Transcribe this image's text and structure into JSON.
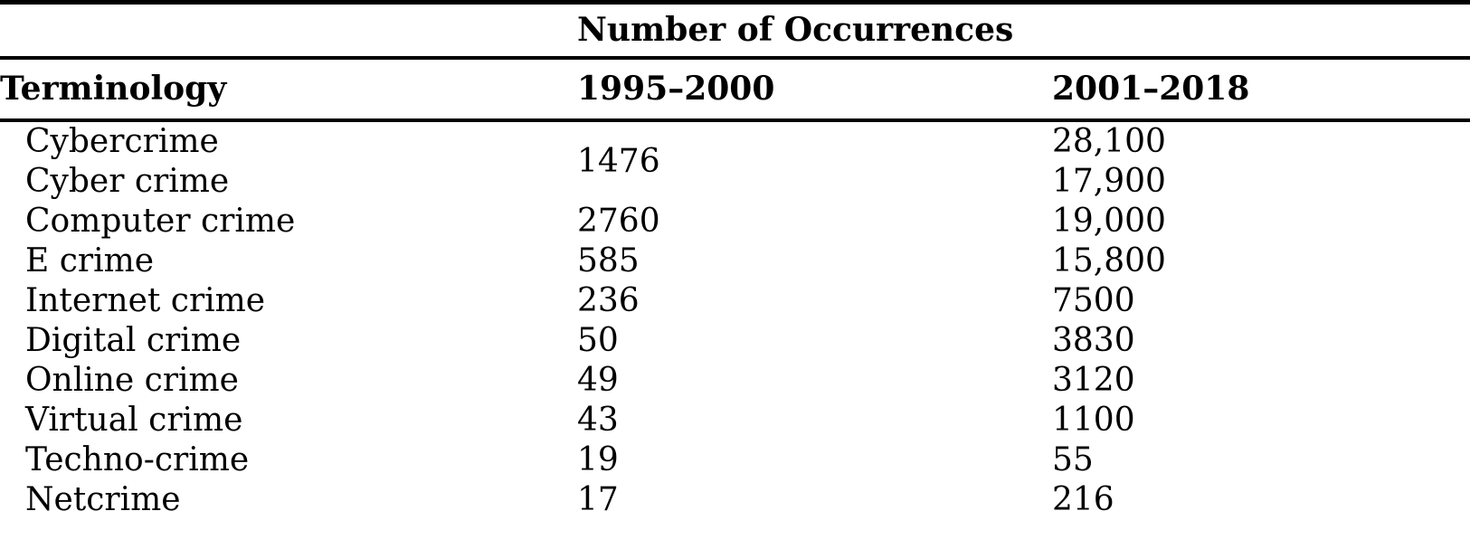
{
  "meta": {
    "background_color": "#ffffff",
    "text_color": "#000000",
    "rule_color": "#000000"
  },
  "table": {
    "spanning_header": "Number of Occurrences",
    "columns": {
      "terminology": "Terminology",
      "period1": "1995–2000",
      "period2": "2001–2018"
    },
    "rows": [
      {
        "term": "Cybercrime",
        "period1": {
          "text": "1476",
          "rowspan": 2
        },
        "period2": "28,100"
      },
      {
        "term": "Cyber crime",
        "period1": null,
        "period2": "17,900"
      },
      {
        "term": "Computer crime",
        "period1": "2760",
        "period2": "19,000"
      },
      {
        "term": "E crime",
        "period1": "585",
        "period2": "15,800"
      },
      {
        "term": "Internet crime",
        "period1": "236",
        "period2": "7500"
      },
      {
        "term": "Digital crime",
        "period1": "50",
        "period2": "3830"
      },
      {
        "term": "Online crime",
        "period1": "49",
        "period2": "3120"
      },
      {
        "term": "Virtual crime",
        "period1": "43",
        "period2": "1100"
      },
      {
        "term": "Techno-crime",
        "period1": "19",
        "period2": "55"
      },
      {
        "term": "Netcrime",
        "period1": "17",
        "period2": "216"
      }
    ]
  },
  "chart_data": {
    "type": "table",
    "title": "Number of Occurrences",
    "columns": [
      "Terminology",
      "1995–2000",
      "2001–2018"
    ],
    "rows": [
      [
        "Cybercrime",
        "1476",
        "28,100"
      ],
      [
        "Cyber crime",
        "1476",
        "17,900"
      ],
      [
        "Computer crime",
        "2760",
        "19,000"
      ],
      [
        "E crime",
        "585",
        "15,800"
      ],
      [
        "Internet crime",
        "236",
        "7500"
      ],
      [
        "Digital crime",
        "50",
        "3830"
      ],
      [
        "Online crime",
        "49",
        "3120"
      ],
      [
        "Virtual crime",
        "43",
        "1100"
      ],
      [
        "Techno-crime",
        "19",
        "55"
      ],
      [
        "Netcrime",
        "17",
        "216"
      ]
    ],
    "notes": "Value 1476 is a merged cell covering both Cybercrime and Cyber crime rows for 1995–2000."
  }
}
